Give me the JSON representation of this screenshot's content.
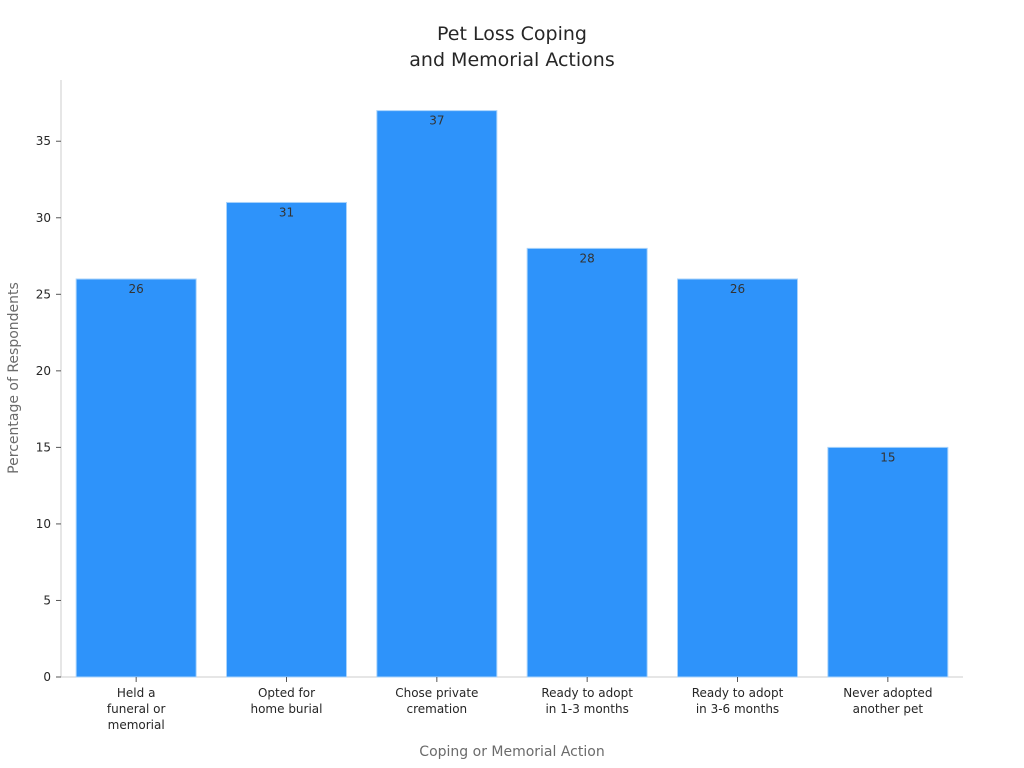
{
  "chart_data": {
    "type": "bar",
    "title": [
      "Pet Loss Coping",
      "and Memorial Actions"
    ],
    "xlabel": "Coping or Memorial Action",
    "ylabel": "Percentage of Respondents",
    "categories": [
      [
        "Held a",
        "funeral or",
        "memorial"
      ],
      [
        "Opted for",
        "home burial"
      ],
      [
        "Chose private",
        "cremation"
      ],
      [
        "Ready to adopt",
        "in 1-3 months"
      ],
      [
        "Ready to adopt",
        "in 3-6 months"
      ],
      [
        "Never adopted",
        "another pet"
      ]
    ],
    "values": [
      26,
      31,
      37,
      28,
      26,
      15
    ],
    "data_labels": [
      "26",
      "31",
      "37",
      "28",
      "26",
      "15"
    ],
    "ylim": [
      0,
      39
    ],
    "yticks": [
      0,
      5,
      10,
      15,
      20,
      25,
      30,
      35
    ],
    "grid": false,
    "legend": "none",
    "colors": {
      "bar": "#2e93fa",
      "bar_edge": "#a9d3fb",
      "axis": "#cccccc",
      "text": "#262626",
      "label": "#6b6b6b"
    }
  }
}
